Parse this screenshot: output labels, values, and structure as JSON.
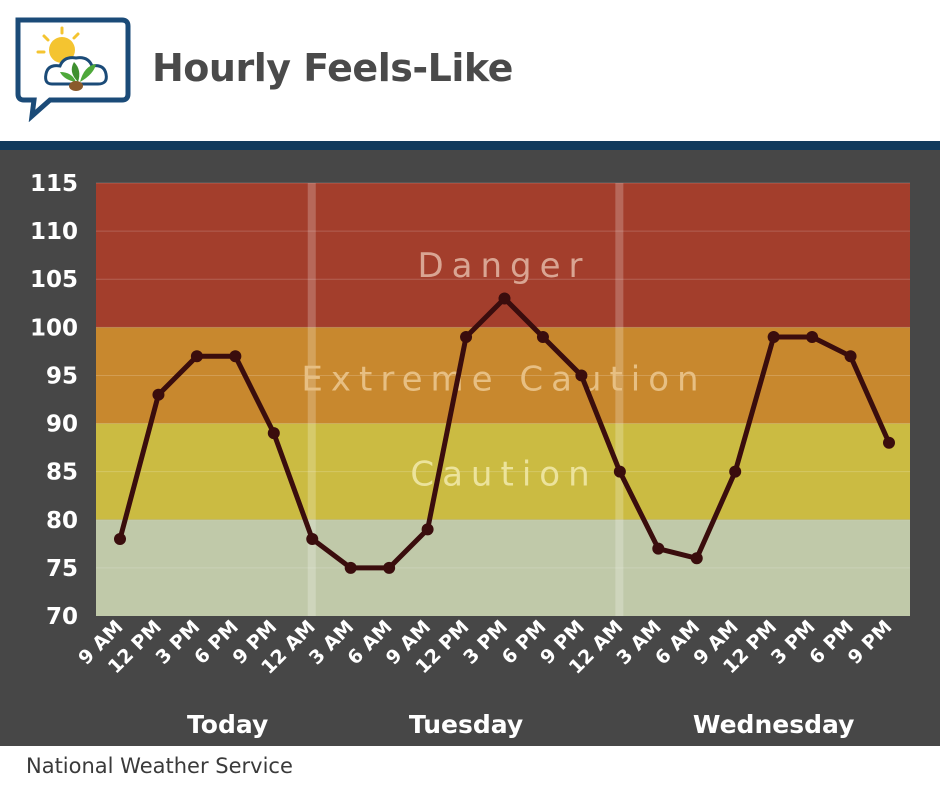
{
  "header": {
    "title": "Hourly Feels-Like"
  },
  "footer": {
    "credit": "National Weather Service"
  },
  "chart_data": {
    "type": "line",
    "title": "Hourly Feels-Like",
    "xlabel": "",
    "ylabel": "",
    "ylim": [
      70,
      115
    ],
    "yticks": [
      70,
      75,
      80,
      85,
      90,
      95,
      100,
      105,
      110,
      115
    ],
    "categories": [
      "9 AM",
      "12 PM",
      "3 PM",
      "6 PM",
      "9 PM",
      "12 AM",
      "3 AM",
      "6 AM",
      "9 AM",
      "12 PM",
      "3 PM",
      "6 PM",
      "9 PM",
      "12 AM",
      "3 AM",
      "6 AM",
      "9 AM",
      "12 PM",
      "3 PM",
      "6 PM",
      "9 PM"
    ],
    "values": [
      78,
      93,
      97,
      97,
      89,
      78,
      75,
      75,
      79,
      99,
      103,
      99,
      95,
      85,
      77,
      76,
      85,
      99,
      99,
      97,
      88
    ],
    "days": [
      {
        "label": "Today",
        "center_index": 2.8
      },
      {
        "label": "Tuesday",
        "center_index": 9
      },
      {
        "label": "Wednesday",
        "center_index": 17
      }
    ],
    "day_dividers_at_index": [
      5,
      13
    ],
    "bands": [
      {
        "name": "Danger",
        "from": 100,
        "to": 115,
        "color": "#a33e2c",
        "label_color": "#d9a593"
      },
      {
        "name": "Extreme Caution",
        "from": 90,
        "to": 100,
        "color": "#c8882e",
        "label_color": "#e7bf83"
      },
      {
        "name": "Caution",
        "from": 80,
        "to": 90,
        "color": "#cbbb42",
        "label_color": "#ece39c"
      },
      {
        "name": "",
        "from": 70,
        "to": 80,
        "color": "#c0c9a9",
        "label_color": ""
      }
    ],
    "line_color": "#3a0d0d",
    "grid": true,
    "legend": "none"
  }
}
